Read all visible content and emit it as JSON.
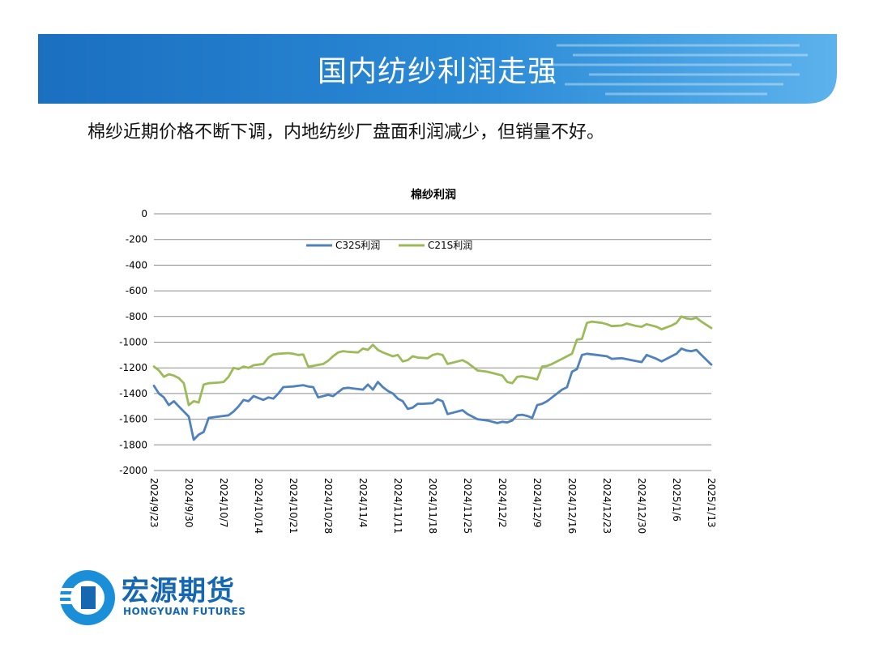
{
  "slide": {
    "title": "国内纺纱利润走强",
    "subtitle": "棉纱近期价格不断下调，内地纺纱厂盘面利润减少，但销量不好。"
  },
  "logo": {
    "name_cn": "宏源期货",
    "name_en": "HONGYUAN FUTURES"
  },
  "colors": {
    "banner": "#1e7ac9",
    "c32s": "#4f81bd",
    "c21s": "#9bbb59"
  },
  "chart_data": {
    "type": "line",
    "title": "棉纱利润",
    "xlabel": "",
    "ylabel": "",
    "ylim": [
      -2000,
      0
    ],
    "yticks": [
      0,
      -200,
      -400,
      -600,
      -800,
      -1000,
      -1200,
      -1400,
      -1600,
      -1800,
      -2000
    ],
    "ytick_labels": [
      "0",
      "-200",
      "-400",
      "-600",
      "-800",
      "-1000",
      "-1200",
      "-1400",
      "-1600",
      "-1800",
      "-2000"
    ],
    "xtick_labels": [
      "2024/9/23",
      "2024/9/30",
      "2024/10/7",
      "2024/10/14",
      "2024/10/21",
      "2024/10/28",
      "2024/11/4",
      "2024/11/11",
      "2024/11/18",
      "2024/11/25",
      "2024/12/2",
      "2024/12/9",
      "2024/12/16",
      "2024/12/23",
      "2024/12/30",
      "2025/1/6",
      "2025/1/13"
    ],
    "x_range": [
      "2024/9/23",
      "2025/1/13"
    ],
    "grid": true,
    "legend_position": "top-center",
    "series": [
      {
        "name": "C32S利润",
        "points": [
          [
            "2024/9/23",
            -1340
          ],
          [
            "2024/9/24",
            -1400
          ],
          [
            "2024/9/25",
            -1430
          ],
          [
            "2024/9/26",
            -1490
          ],
          [
            "2024/9/27",
            -1460
          ],
          [
            "2024/9/28",
            -1500
          ],
          [
            "2024/9/29",
            -1540
          ],
          [
            "2024/9/30",
            -1580
          ],
          [
            "2024/10/1",
            -1760
          ],
          [
            "2024/10/2",
            -1720
          ],
          [
            "2024/10/3",
            -1700
          ],
          [
            "2024/10/4",
            -1590
          ],
          [
            "2024/10/6",
            -1580
          ],
          [
            "2024/10/8",
            -1570
          ],
          [
            "2024/10/9",
            -1540
          ],
          [
            "2024/10/10",
            -1500
          ],
          [
            "2024/10/11",
            -1450
          ],
          [
            "2024/10/12",
            -1460
          ],
          [
            "2024/10/13",
            -1420
          ],
          [
            "2024/10/15",
            -1450
          ],
          [
            "2024/10/16",
            -1430
          ],
          [
            "2024/10/17",
            -1440
          ],
          [
            "2024/10/18",
            -1400
          ],
          [
            "2024/10/19",
            -1350
          ],
          [
            "2024/10/21",
            -1345
          ],
          [
            "2024/10/22",
            -1340
          ],
          [
            "2024/10/23",
            -1335
          ],
          [
            "2024/10/24",
            -1345
          ],
          [
            "2024/10/25",
            -1350
          ],
          [
            "2024/10/26",
            -1430
          ],
          [
            "2024/10/27",
            -1420
          ],
          [
            "2024/10/28",
            -1410
          ],
          [
            "2024/10/29",
            -1420
          ],
          [
            "2024/10/30",
            -1390
          ],
          [
            "2024/10/31",
            -1360
          ],
          [
            "2024/11/1",
            -1355
          ],
          [
            "2024/11/2",
            -1360
          ],
          [
            "2024/11/4",
            -1370
          ],
          [
            "2024/11/5",
            -1330
          ],
          [
            "2024/11/6",
            -1370
          ],
          [
            "2024/11/7",
            -1310
          ],
          [
            "2024/11/8",
            -1350
          ],
          [
            "2024/11/9",
            -1380
          ],
          [
            "2024/11/10",
            -1400
          ],
          [
            "2024/11/11",
            -1440
          ],
          [
            "2024/11/12",
            -1460
          ],
          [
            "2024/11/13",
            -1520
          ],
          [
            "2024/11/14",
            -1510
          ],
          [
            "2024/11/15",
            -1480
          ],
          [
            "2024/11/16",
            -1480
          ],
          [
            "2024/11/18",
            -1475
          ],
          [
            "2024/11/19",
            -1445
          ],
          [
            "2024/11/20",
            -1460
          ],
          [
            "2024/11/21",
            -1560
          ],
          [
            "2024/11/22",
            -1550
          ],
          [
            "2024/11/24",
            -1530
          ],
          [
            "2024/11/25",
            -1560
          ],
          [
            "2024/11/27",
            -1600
          ],
          [
            "2024/11/29",
            -1610
          ],
          [
            "2024/12/1",
            -1630
          ],
          [
            "2024/12/2",
            -1620
          ],
          [
            "2024/12/3",
            -1625
          ],
          [
            "2024/12/4",
            -1610
          ],
          [
            "2024/12/5",
            -1570
          ],
          [
            "2024/12/6",
            -1565
          ],
          [
            "2024/12/7",
            -1575
          ],
          [
            "2024/12/8",
            -1590
          ],
          [
            "2024/12/9",
            -1490
          ],
          [
            "2024/12/10",
            -1480
          ],
          [
            "2024/12/11",
            -1460
          ],
          [
            "2024/12/12",
            -1430
          ],
          [
            "2024/12/13",
            -1400
          ],
          [
            "2024/12/14",
            -1370
          ],
          [
            "2024/12/15",
            -1350
          ],
          [
            "2024/12/16",
            -1230
          ],
          [
            "2024/12/17",
            -1210
          ],
          [
            "2024/12/18",
            -1100
          ],
          [
            "2024/12/19",
            -1090
          ],
          [
            "2024/12/21",
            -1100
          ],
          [
            "2024/12/23",
            -1110
          ],
          [
            "2024/12/24",
            -1130
          ],
          [
            "2024/12/26",
            -1125
          ],
          [
            "2024/12/28",
            -1140
          ],
          [
            "2024/12/30",
            -1155
          ],
          [
            "2024/12/31",
            -1100
          ],
          [
            "2025/1/2",
            -1130
          ],
          [
            "2025/1/3",
            -1150
          ],
          [
            "2025/1/5",
            -1110
          ],
          [
            "2025/1/6",
            -1090
          ],
          [
            "2025/1/7",
            -1050
          ],
          [
            "2025/1/8",
            -1065
          ],
          [
            "2025/1/9",
            -1070
          ],
          [
            "2025/1/10",
            -1060
          ],
          [
            "2025/1/11",
            -1100
          ],
          [
            "2025/1/13",
            -1175
          ]
        ]
      },
      {
        "name": "C21S利润",
        "points": [
          [
            "2024/9/23",
            -1190
          ],
          [
            "2024/9/24",
            -1220
          ],
          [
            "2024/9/25",
            -1270
          ],
          [
            "2024/9/26",
            -1250
          ],
          [
            "2024/9/27",
            -1260
          ],
          [
            "2024/9/28",
            -1280
          ],
          [
            "2024/9/29",
            -1320
          ],
          [
            "2024/9/30",
            -1490
          ],
          [
            "2024/10/1",
            -1460
          ],
          [
            "2024/10/2",
            -1470
          ],
          [
            "2024/10/3",
            -1330
          ],
          [
            "2024/10/4",
            -1320
          ],
          [
            "2024/10/6",
            -1315
          ],
          [
            "2024/10/7",
            -1310
          ],
          [
            "2024/10/8",
            -1270
          ],
          [
            "2024/10/9",
            -1200
          ],
          [
            "2024/10/10",
            -1210
          ],
          [
            "2024/10/11",
            -1190
          ],
          [
            "2024/10/12",
            -1200
          ],
          [
            "2024/10/13",
            -1180
          ],
          [
            "2024/10/14",
            -1175
          ],
          [
            "2024/10/15",
            -1170
          ],
          [
            "2024/10/16",
            -1120
          ],
          [
            "2024/10/17",
            -1095
          ],
          [
            "2024/10/18",
            -1090
          ],
          [
            "2024/10/20",
            -1085
          ],
          [
            "2024/10/21",
            -1090
          ],
          [
            "2024/10/22",
            -1100
          ],
          [
            "2024/10/23",
            -1095
          ],
          [
            "2024/10/24",
            -1190
          ],
          [
            "2024/10/25",
            -1185
          ],
          [
            "2024/10/27",
            -1170
          ],
          [
            "2024/10/28",
            -1145
          ],
          [
            "2024/10/29",
            -1110
          ],
          [
            "2024/10/30",
            -1080
          ],
          [
            "2024/10/31",
            -1070
          ],
          [
            "2024/11/1",
            -1075
          ],
          [
            "2024/11/3",
            -1080
          ],
          [
            "2024/11/4",
            -1050
          ],
          [
            "2024/11/5",
            -1060
          ],
          [
            "2024/11/6",
            -1020
          ],
          [
            "2024/11/7",
            -1060
          ],
          [
            "2024/11/8",
            -1080
          ],
          [
            "2024/11/10",
            -1110
          ],
          [
            "2024/11/11",
            -1100
          ],
          [
            "2024/11/12",
            -1150
          ],
          [
            "2024/11/13",
            -1140
          ],
          [
            "2024/11/14",
            -1110
          ],
          [
            "2024/11/15",
            -1120
          ],
          [
            "2024/11/17",
            -1125
          ],
          [
            "2024/11/18",
            -1100
          ],
          [
            "2024/11/19",
            -1090
          ],
          [
            "2024/11/20",
            -1100
          ],
          [
            "2024/11/21",
            -1170
          ],
          [
            "2024/11/22",
            -1160
          ],
          [
            "2024/11/24",
            -1140
          ],
          [
            "2024/11/25",
            -1160
          ],
          [
            "2024/11/27",
            -1220
          ],
          [
            "2024/11/29",
            -1230
          ],
          [
            "2024/12/1",
            -1250
          ],
          [
            "2024/12/2",
            -1260
          ],
          [
            "2024/12/3",
            -1310
          ],
          [
            "2024/12/4",
            -1320
          ],
          [
            "2024/12/5",
            -1270
          ],
          [
            "2024/12/6",
            -1265
          ],
          [
            "2024/12/8",
            -1280
          ],
          [
            "2024/12/9",
            -1290
          ],
          [
            "2024/12/10",
            -1190
          ],
          [
            "2024/12/11",
            -1185
          ],
          [
            "2024/12/12",
            -1170
          ],
          [
            "2024/12/14",
            -1130
          ],
          [
            "2024/12/15",
            -1110
          ],
          [
            "2024/12/16",
            -1090
          ],
          [
            "2024/12/17",
            -980
          ],
          [
            "2024/12/18",
            -975
          ],
          [
            "2024/12/19",
            -850
          ],
          [
            "2024/12/20",
            -840
          ],
          [
            "2024/12/22",
            -850
          ],
          [
            "2024/12/23",
            -860
          ],
          [
            "2024/12/24",
            -875
          ],
          [
            "2024/12/26",
            -870
          ],
          [
            "2024/12/27",
            -855
          ],
          [
            "2024/12/29",
            -875
          ],
          [
            "2024/12/30",
            -880
          ],
          [
            "2024/12/31",
            -860
          ],
          [
            "2025/1/2",
            -880
          ],
          [
            "2025/1/3",
            -900
          ],
          [
            "2025/1/5",
            -870
          ],
          [
            "2025/1/6",
            -850
          ],
          [
            "2025/1/7",
            -800
          ],
          [
            "2025/1/8",
            -815
          ],
          [
            "2025/1/9",
            -820
          ],
          [
            "2025/1/10",
            -810
          ],
          [
            "2025/1/11",
            -840
          ],
          [
            "2025/1/13",
            -890
          ]
        ]
      }
    ]
  }
}
